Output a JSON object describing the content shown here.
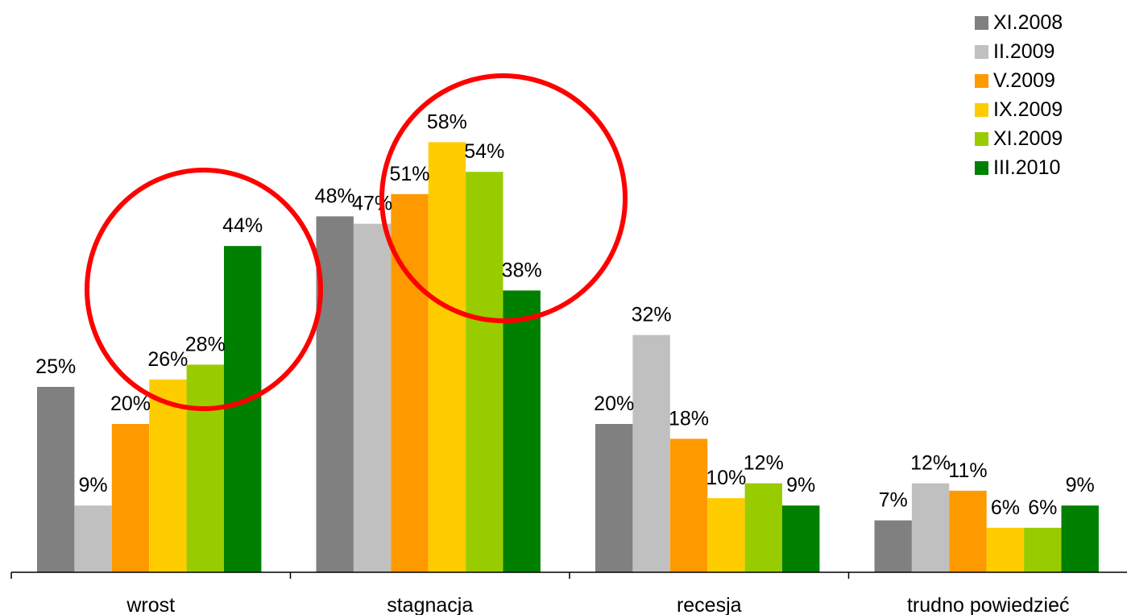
{
  "chart_data": {
    "type": "bar",
    "categories": [
      "wrost",
      "stagnacja",
      "recesja",
      "trudno powiedzieć"
    ],
    "series": [
      {
        "name": "XI.2008",
        "color": "#808080",
        "values": [
          25,
          48,
          20,
          7
        ]
      },
      {
        "name": "II.2009",
        "color": "#c0c0c0",
        "values": [
          9,
          47,
          32,
          12
        ]
      },
      {
        "name": "V.2009",
        "color": "#ff9900",
        "values": [
          20,
          51,
          18,
          11
        ]
      },
      {
        "name": "IX.2009",
        "color": "#ffcc00",
        "values": [
          26,
          58,
          10,
          6
        ]
      },
      {
        "name": "XI.2009",
        "color": "#99cc00",
        "values": [
          28,
          54,
          12,
          6
        ]
      },
      {
        "name": "III.2010",
        "color": "#008000",
        "values": [
          44,
          38,
          9,
          9
        ]
      }
    ],
    "value_suffix": "%",
    "title": "",
    "xlabel": "",
    "ylabel": "",
    "ylim": [
      0,
      60
    ],
    "grid": false,
    "legend": "top-right",
    "annotations": [
      {
        "type": "circle",
        "color": "#ff0000",
        "category": "wrost",
        "highlights": [
          "IX.2009",
          "XI.2009",
          "III.2010"
        ]
      },
      {
        "type": "circle",
        "color": "#ff0000",
        "category": "stagnacja",
        "highlights": [
          "V.2009",
          "IX.2009",
          "XI.2009",
          "III.2010"
        ]
      }
    ]
  }
}
